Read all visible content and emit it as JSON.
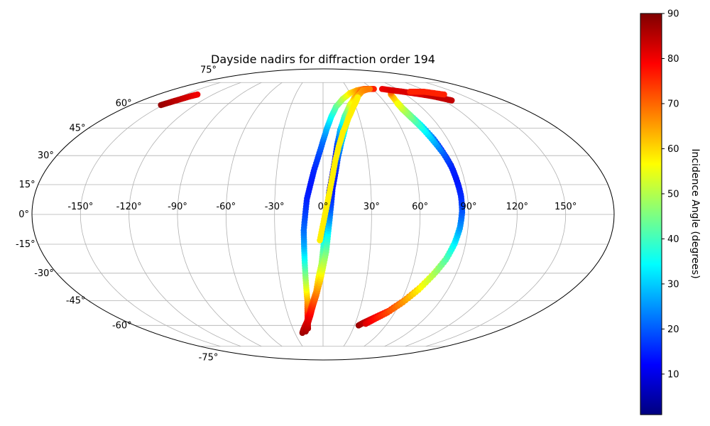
{
  "chart_data": {
    "type": "scatter",
    "title": "Dayside nadirs for diffraction order 194",
    "projection": "mollweide",
    "grid": true,
    "xlim": [
      -180,
      180
    ],
    "ylim": [
      -90,
      90
    ],
    "lon_ticks": [
      -150,
      -120,
      -90,
      -60,
      -30,
      0,
      30,
      60,
      90,
      120,
      150
    ],
    "lon_tick_labels": [
      "-150°",
      "-120°",
      "-90°",
      "-60°",
      "-30°",
      "0°",
      "30°",
      "60°",
      "90°",
      "120°",
      "150°"
    ],
    "lat_ticks": [
      -75,
      -60,
      -45,
      -30,
      -15,
      0,
      15,
      30,
      45,
      60,
      75
    ],
    "lat_tick_labels": [
      "-75°",
      "-60°",
      "-45°",
      "-30°",
      "-15°",
      "0°",
      "15°",
      "30°",
      "45°",
      "60°",
      "75°"
    ],
    "colorbar": {
      "label": "Incidence Angle (degrees)",
      "colormap": "jet",
      "range": [
        1,
        90
      ],
      "ticks": [
        10,
        20,
        30,
        40,
        50,
        60,
        70,
        80,
        90
      ],
      "tick_labels": [
        "10",
        "20",
        "30",
        "40",
        "50",
        "60",
        "70",
        "80",
        "90"
      ],
      "placement": "right"
    },
    "series": [
      {
        "points": [
          [
            -152,
            59,
            88
          ],
          [
            -148,
            61,
            86
          ],
          [
            -144,
            63,
            84
          ],
          [
            -140,
            65,
            82
          ],
          [
            -137,
            66,
            80
          ]
        ]
      },
      {
        "points": [
          [
            -15,
            -62,
            86
          ],
          [
            -14,
            -58,
            82
          ],
          [
            -13,
            -52,
            75
          ],
          [
            -12,
            -45,
            65
          ],
          [
            -12,
            -38,
            55
          ],
          [
            -12,
            -30,
            45
          ],
          [
            -12,
            -22,
            35
          ],
          [
            -12,
            -15,
            27
          ],
          [
            -12,
            -8,
            22
          ],
          [
            -11,
            0,
            18
          ],
          [
            -10,
            8,
            15
          ],
          [
            -8,
            15,
            14
          ],
          [
            -6,
            22,
            15
          ],
          [
            -3,
            30,
            18
          ],
          [
            0,
            38,
            22
          ],
          [
            3,
            45,
            28
          ],
          [
            7,
            52,
            35
          ],
          [
            12,
            58,
            42
          ],
          [
            20,
            63,
            50
          ],
          [
            30,
            67,
            58
          ],
          [
            40,
            69,
            64
          ],
          [
            50,
            70,
            70
          ],
          [
            58,
            70,
            74
          ]
        ]
      },
      {
        "points": [
          [
            -22,
            -65,
            88
          ],
          [
            -19,
            -62,
            85
          ],
          [
            -15,
            -58,
            82
          ],
          [
            -11,
            -52,
            78
          ],
          [
            -8,
            -46,
            72
          ],
          [
            -5,
            -40,
            66
          ],
          [
            -3,
            -32,
            58
          ],
          [
            -1,
            -25,
            50
          ],
          [
            0,
            -18,
            42
          ],
          [
            1,
            -10,
            32
          ],
          [
            2,
            -2,
            20
          ],
          [
            3,
            5,
            10
          ],
          [
            4,
            12,
            8
          ],
          [
            6,
            20,
            9
          ],
          [
            8,
            28,
            12
          ],
          [
            10,
            36,
            18
          ],
          [
            13,
            44,
            28
          ],
          [
            18,
            52,
            40
          ],
          [
            25,
            59,
            52
          ],
          [
            33,
            64,
            62
          ],
          [
            43,
            68,
            70
          ],
          [
            55,
            70,
            74
          ],
          [
            62,
            70,
            76
          ]
        ]
      },
      {
        "points": [
          [
            -18,
            -64,
            87
          ],
          [
            -15,
            -60,
            84
          ],
          [
            -11,
            -54,
            80
          ],
          [
            -8,
            -48,
            75
          ],
          [
            -5,
            -42,
            69
          ],
          [
            -2,
            -34,
            61
          ],
          [
            0,
            -27,
            53
          ],
          [
            2,
            -19,
            45
          ],
          [
            3,
            -11,
            36
          ],
          [
            4,
            -3,
            26
          ],
          [
            5,
            5,
            18
          ],
          [
            6,
            13,
            14
          ],
          [
            8,
            21,
            15
          ],
          [
            10,
            29,
            20
          ],
          [
            13,
            37,
            28
          ],
          [
            17,
            45,
            38
          ],
          [
            22,
            53,
            48
          ],
          [
            29,
            60,
            56
          ],
          [
            37,
            65,
            62
          ],
          [
            47,
            69,
            66
          ],
          [
            57,
            70,
            68
          ]
        ]
      },
      {
        "points": [
          [
            -2,
            -13,
            58
          ],
          [
            0,
            -5,
            58
          ],
          [
            2,
            3,
            58
          ],
          [
            4,
            11,
            58
          ],
          [
            6,
            19,
            58
          ],
          [
            8,
            27,
            58
          ],
          [
            11,
            35,
            58
          ],
          [
            15,
            43,
            58
          ],
          [
            21,
            51,
            58
          ],
          [
            28,
            58,
            58
          ],
          [
            36,
            64,
            58
          ]
        ]
      },
      {
        "points": [
          [
            34,
            -60,
            88
          ],
          [
            38,
            -58,
            85
          ],
          [
            45,
            -55,
            80
          ],
          [
            54,
            -51,
            75
          ],
          [
            62,
            -45,
            68
          ],
          [
            69,
            -38,
            60
          ],
          [
            75,
            -30,
            52
          ],
          [
            80,
            -22,
            44
          ],
          [
            83,
            -14,
            36
          ],
          [
            85,
            -6,
            28
          ],
          [
            86,
            2,
            20
          ],
          [
            86,
            10,
            12
          ],
          [
            85,
            18,
            6
          ],
          [
            84,
            25,
            5
          ],
          [
            82,
            32,
            12
          ],
          [
            80,
            39,
            22
          ],
          [
            77,
            46,
            32
          ],
          [
            74,
            52,
            42
          ],
          [
            72,
            57,
            50
          ],
          [
            72,
            62,
            58
          ],
          [
            74,
            66,
            64
          ],
          [
            78,
            68,
            70
          ]
        ]
      },
      {
        "points": [
          [
            40,
            -59,
            82
          ],
          [
            46,
            -56,
            78
          ],
          [
            54,
            -52,
            73
          ],
          [
            62,
            -46,
            66
          ],
          [
            69,
            -39,
            58
          ],
          [
            75,
            -31,
            50
          ],
          [
            80,
            -23,
            42
          ],
          [
            83,
            -15,
            34
          ],
          [
            85,
            -7,
            26
          ],
          [
            86,
            1,
            20
          ],
          [
            86,
            9,
            16
          ],
          [
            85,
            17,
            14
          ],
          [
            84,
            24,
            15
          ],
          [
            82,
            31,
            20
          ],
          [
            79,
            38,
            28
          ],
          [
            76,
            45,
            36
          ],
          [
            73,
            51,
            44
          ],
          [
            71,
            56,
            50
          ],
          [
            71,
            60,
            56
          ]
        ]
      },
      {
        "points": [
          [
            72,
            70,
            80
          ],
          [
            82,
            69,
            82
          ],
          [
            92,
            68,
            82
          ],
          [
            100,
            67,
            82
          ],
          [
            108,
            66,
            82
          ],
          [
            115,
            65,
            84
          ],
          [
            120,
            64,
            84
          ],
          [
            124,
            63,
            84
          ],
          [
            128,
            62,
            84
          ]
        ]
      },
      {
        "points": [
          [
            100,
            68,
            76
          ],
          [
            108,
            68,
            76
          ],
          [
            116,
            68,
            76
          ],
          [
            124,
            67,
            76
          ],
          [
            132,
            66,
            76
          ]
        ]
      }
    ]
  }
}
